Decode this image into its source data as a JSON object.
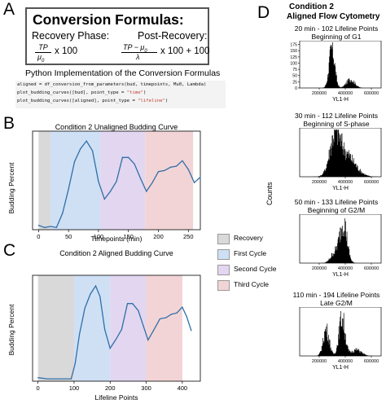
{
  "panels": {
    "a": "A",
    "b": "B",
    "c": "C",
    "d": "D"
  },
  "formulas": {
    "title": "Conversion Formulas:",
    "recovery_label": "Recovery Phase:",
    "post_label": "Post-Recovery:",
    "recovery_num": "TP",
    "recovery_den": "μ",
    "recovery_den_sub": "0",
    "recovery_tail": "x 100",
    "post_num_a": "TP − μ",
    "post_num_sub": "0",
    "post_den": "λ",
    "post_tail": "x 100 + 100"
  },
  "python": {
    "title": "Python Implementation of the Conversion Formulas",
    "line1_a": "aligned = df_conversion_from_parameters(bud, timepoints, Mu0, Lambda)",
    "line2_a": "plot_budding_curves([bud], point_type = ",
    "line2_str": "\"time\"",
    "line2_b": ")",
    "line3_a": "plot_budding_curves([aligned], point_type = ",
    "line3_str": "\"lifeline\"",
    "line3_b": ")"
  },
  "legend": {
    "items": [
      {
        "label": "Recovery",
        "color": "#d9d9d9"
      },
      {
        "label": "First Cycle",
        "color": "#cfe0f5"
      },
      {
        "label": "Second Cycle",
        "color": "#e2d6f0"
      },
      {
        "label": "Third Cycle",
        "color": "#f3d4d6"
      }
    ]
  },
  "flow": {
    "title_line1": "Condition 2",
    "title_line2": "Aligned Flow Cytometry",
    "ylabel": "Counts",
    "panels": [
      {
        "line1": "20 min - 102 Lifeline Points",
        "line2": "Beginning of G1",
        "xlabel": "YL1-H"
      },
      {
        "line1": "30 min - 112 Lifeline Points",
        "line2": "Beginning of S-phase",
        "xlabel": "YL1-H"
      },
      {
        "line1": "50 min - 133 Lifeline Points",
        "line2": "Beginning of G2/M",
        "xlabel": "YL1-H"
      },
      {
        "line1": "110 min - 194 Lifeline Points",
        "line2": "Late G2/M",
        "xlabel": "YL1-H"
      }
    ],
    "yticks_first": [
      "0",
      "25",
      "50",
      "75",
      "100",
      "125",
      "150",
      "175"
    ],
    "xticks": [
      "200000",
      "400000",
      "600000"
    ]
  },
  "chart_data": [
    {
      "type": "line",
      "title": "Condition 2 Unaligned Budding Curve",
      "xlabel": "Timepoints (min)",
      "ylabel": "Budding Percent",
      "xlim": [
        -10,
        270
      ],
      "ylim": [
        0,
        90
      ],
      "xticks": [
        0,
        50,
        100,
        150,
        200,
        250
      ],
      "regions": [
        {
          "name": "Recovery",
          "from": 0,
          "to": 20,
          "color": "#d9d9d9"
        },
        {
          "name": "First Cycle",
          "from": 20,
          "to": 103,
          "color": "#cfe0f5"
        },
        {
          "name": "Second Cycle",
          "from": 103,
          "to": 178,
          "color": "#e2d6f0"
        },
        {
          "name": "Third Cycle",
          "from": 178,
          "to": 258,
          "color": "#f3d4d6"
        }
      ],
      "x": [
        0,
        10,
        20,
        30,
        40,
        50,
        60,
        70,
        80,
        90,
        100,
        110,
        120,
        130,
        140,
        150,
        160,
        170,
        180,
        190,
        200,
        210,
        220,
        230,
        240,
        250,
        260,
        270
      ],
      "y": [
        4,
        2,
        3,
        2,
        15,
        37,
        62,
        74,
        81,
        72,
        44,
        28,
        35,
        44,
        66,
        66,
        60,
        47,
        35,
        43,
        53,
        54,
        57,
        58,
        63,
        55,
        43,
        48
      ]
    },
    {
      "type": "line",
      "title": "Condition 2 Aligned Budding Curve",
      "xlabel": "Lifeline Points",
      "ylabel": "Budding Percent",
      "xlim": [
        -15,
        450
      ],
      "ylim": [
        0,
        90
      ],
      "xticks": [
        0,
        100,
        200,
        300,
        400
      ],
      "regions": [
        {
          "name": "Recovery",
          "from": 0,
          "to": 100,
          "color": "#d9d9d9"
        },
        {
          "name": "First Cycle",
          "from": 100,
          "to": 200,
          "color": "#cfe0f5"
        },
        {
          "name": "Second Cycle",
          "from": 200,
          "to": 300,
          "color": "#e2d6f0"
        },
        {
          "name": "Third Cycle",
          "from": 300,
          "to": 400,
          "color": "#f3d4d6"
        }
      ],
      "x": [
        0,
        25,
        50,
        75,
        92,
        103,
        115,
        130,
        145,
        160,
        172,
        185,
        200,
        215,
        232,
        248,
        262,
        278,
        292,
        305,
        320,
        338,
        355,
        370,
        385,
        400,
        412,
        425
      ],
      "y": [
        3,
        2,
        2,
        2,
        2,
        15,
        40,
        62,
        74,
        81,
        72,
        44,
        28,
        35,
        44,
        66,
        66,
        60,
        47,
        35,
        43,
        53,
        54,
        57,
        58,
        63,
        55,
        43
      ]
    }
  ]
}
